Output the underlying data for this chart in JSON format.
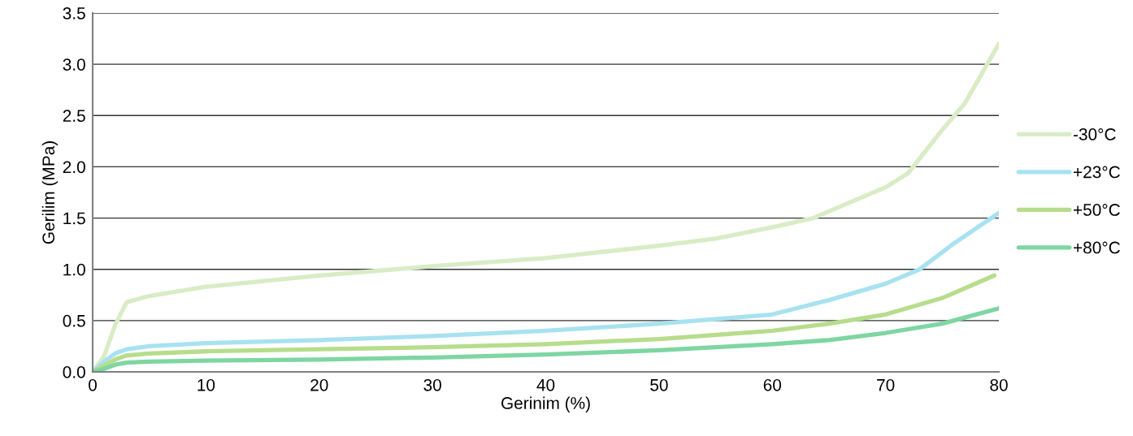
{
  "chart_data": {
    "type": "line",
    "xlabel": "Gerinim (%)",
    "ylabel": "Gerilim (MPa)",
    "xlim": [
      0,
      80
    ],
    "xticks": [
      0,
      10,
      20,
      30,
      40,
      50,
      60,
      70,
      80
    ],
    "ylim": [
      0,
      3.5
    ],
    "yticks": [
      {
        "value": 0,
        "label": "0.0"
      },
      {
        "value": 0.5,
        "label": "0.5"
      },
      {
        "value": 1,
        "label": "1.0"
      },
      {
        "value": 1.5,
        "label": "1.5"
      },
      {
        "value": 2,
        "label": "2.0"
      },
      {
        "value": 2.5,
        "label": "2.5"
      },
      {
        "value": 3,
        "label": "3.0"
      },
      {
        "value": 3.5,
        "label": "3.5"
      }
    ],
    "grid": "y",
    "legend": "right",
    "line_style": "solid",
    "marker": "none",
    "series": [
      {
        "name": "-30°C",
        "color": "#d9ecc6",
        "x": [
          0,
          1,
          2,
          3,
          5,
          10,
          20,
          30,
          40,
          50,
          55,
          60,
          63.6,
          70,
          72,
          75,
          77,
          80
        ],
        "values": [
          0,
          0.15,
          0.46,
          0.68,
          0.74,
          0.83,
          0.94,
          1.03,
          1.11,
          1.23,
          1.3,
          1.41,
          1.5,
          1.8,
          1.94,
          2.36,
          2.62,
          3.2
        ]
      },
      {
        "name": "+23°C",
        "color": "#a8e2f0",
        "x": [
          0,
          1,
          2,
          3,
          5,
          10,
          20,
          30,
          40,
          50,
          60,
          65,
          70,
          73,
          76,
          80
        ],
        "values": [
          0,
          0.1,
          0.18,
          0.22,
          0.25,
          0.28,
          0.31,
          0.35,
          0.4,
          0.47,
          0.56,
          0.7,
          0.86,
          1.0,
          1.25,
          1.55
        ]
      },
      {
        "name": "+50°C",
        "color": "#b7dd8c",
        "x": [
          0,
          1,
          2,
          3,
          5,
          10,
          20,
          30,
          40,
          50,
          60,
          65,
          70,
          75,
          79.6
        ],
        "values": [
          0,
          0.06,
          0.12,
          0.16,
          0.18,
          0.2,
          0.22,
          0.24,
          0.27,
          0.32,
          0.4,
          0.47,
          0.56,
          0.72,
          0.94
        ]
      },
      {
        "name": "+80°C",
        "color": "#7ed6a2",
        "x": [
          0,
          1,
          2,
          3,
          5,
          10,
          20,
          30,
          40,
          50,
          60,
          65,
          70,
          75,
          80
        ],
        "values": [
          0,
          0.03,
          0.07,
          0.09,
          0.1,
          0.11,
          0.12,
          0.14,
          0.17,
          0.21,
          0.27,
          0.31,
          0.38,
          0.47,
          0.62
        ]
      }
    ]
  }
}
